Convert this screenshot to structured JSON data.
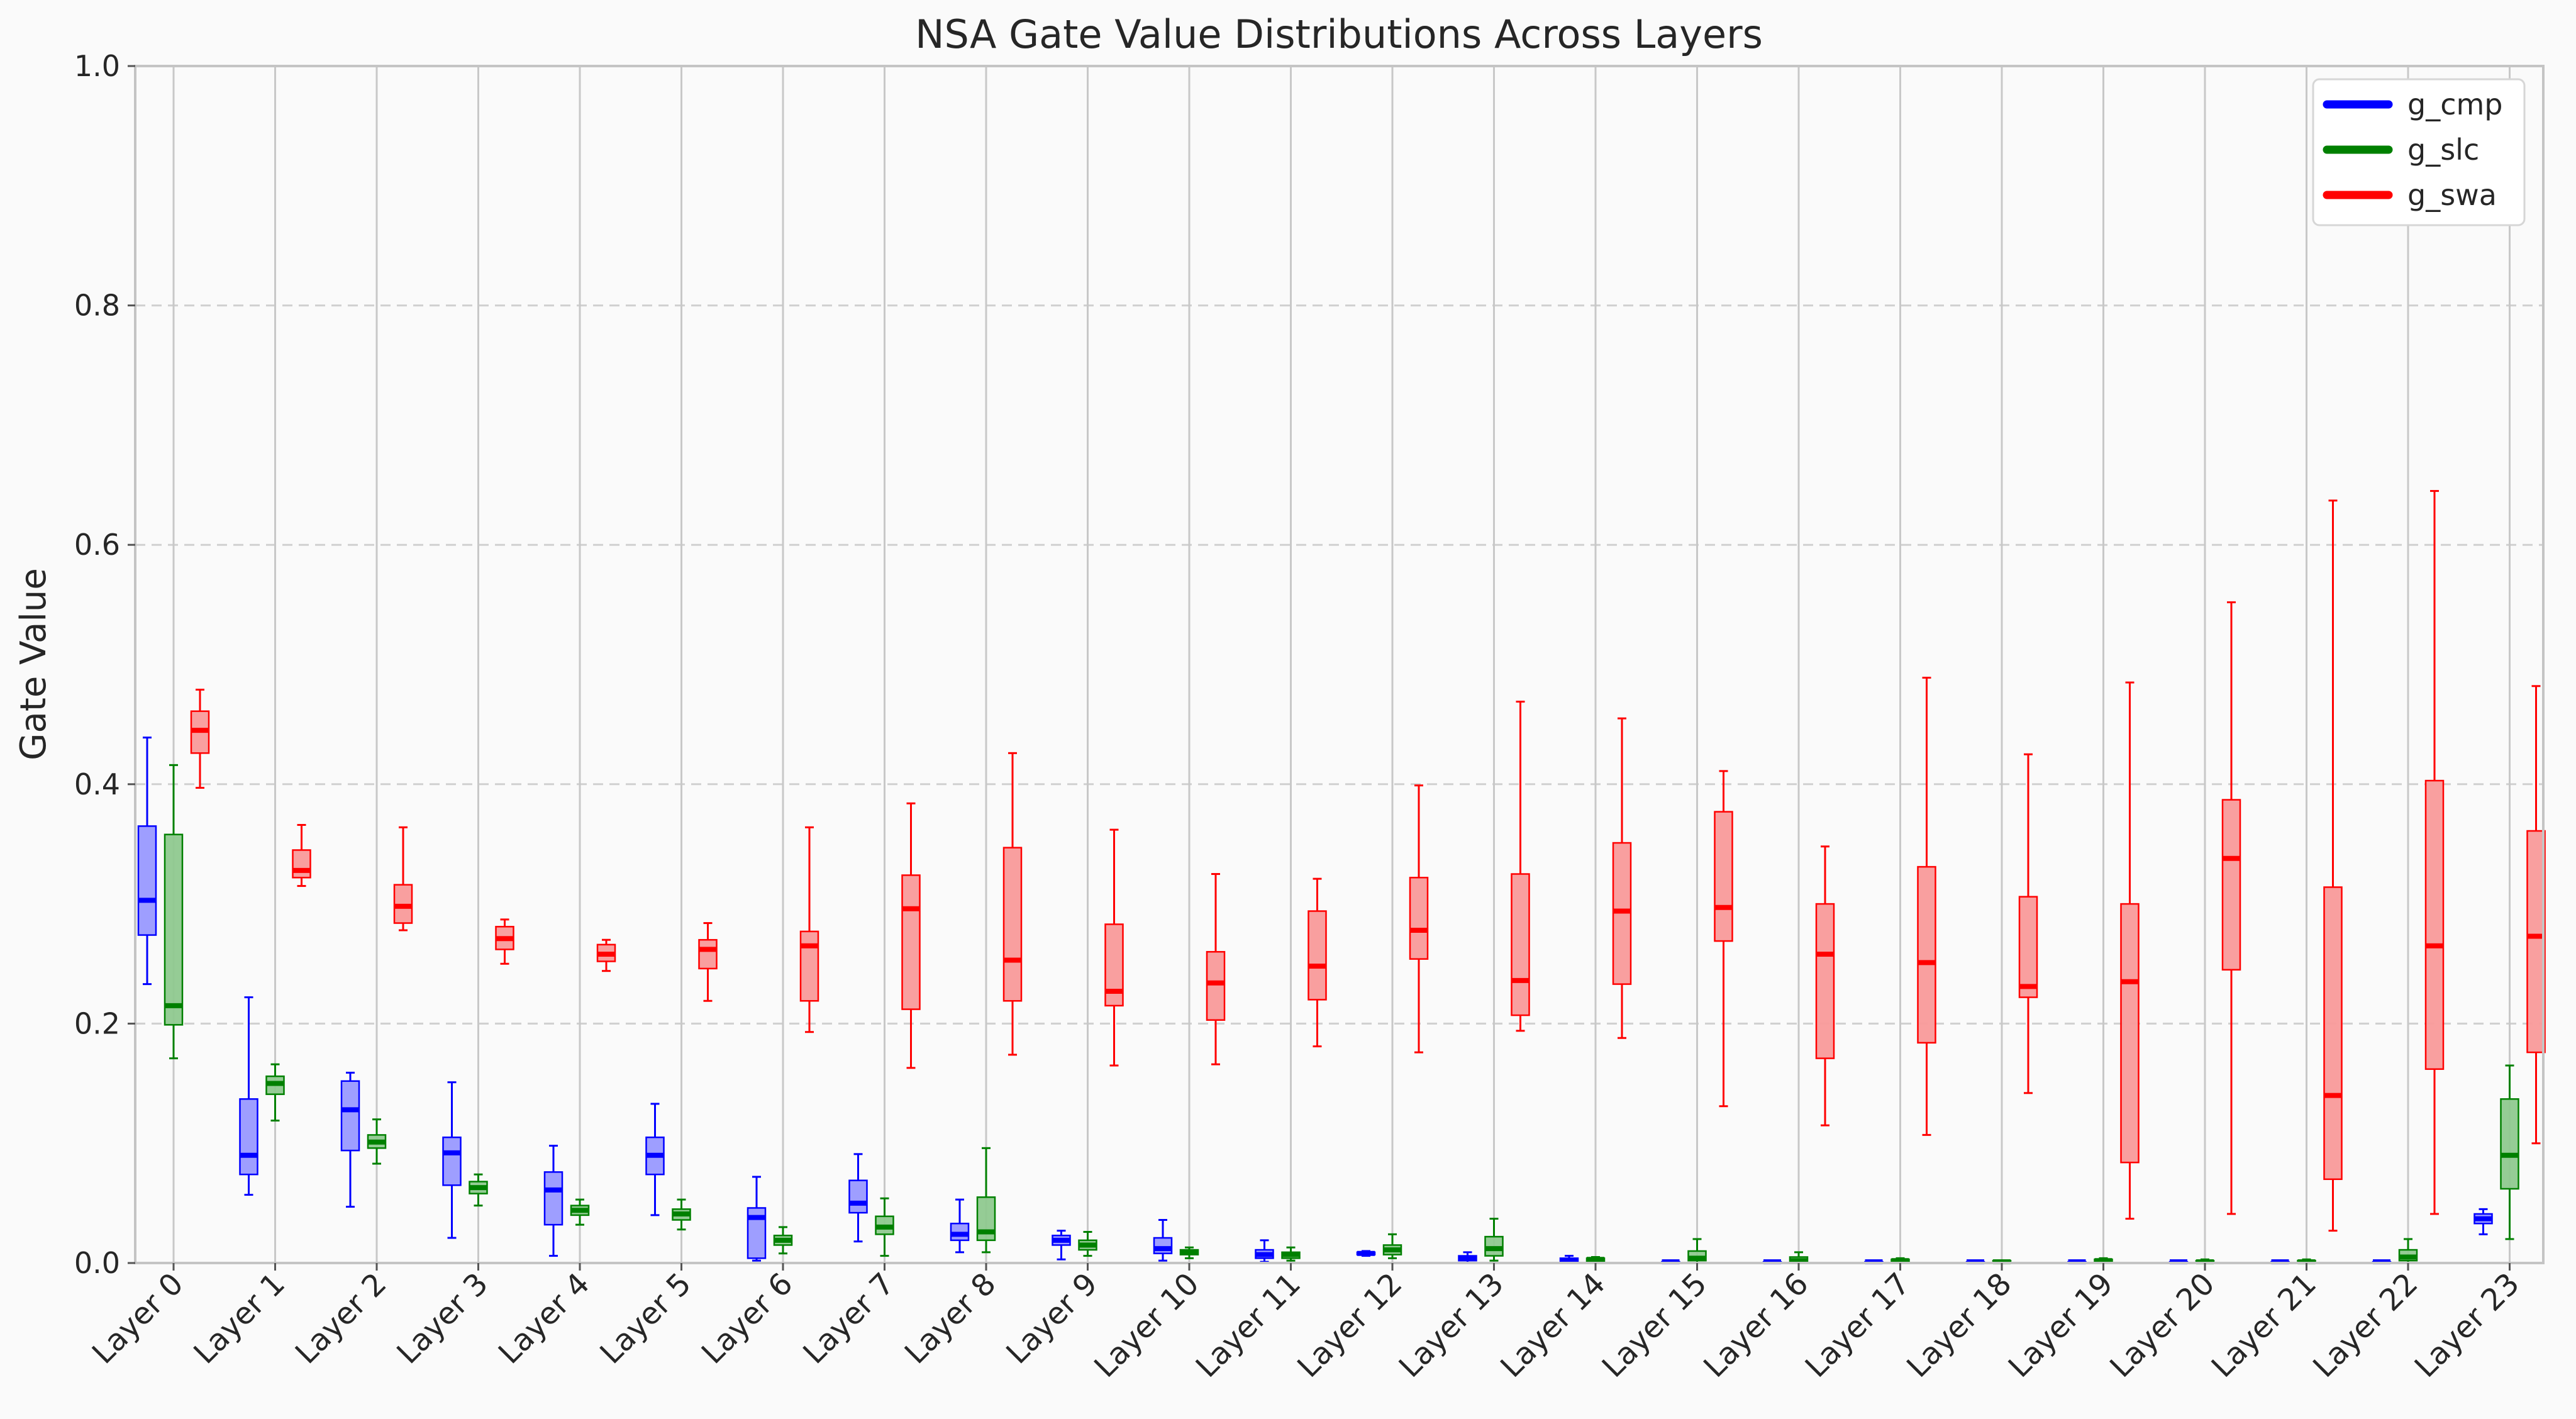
{
  "chart_data": {
    "type": "boxplot",
    "title": "NSA Gate Value Distributions Across Layers",
    "xlabel": "",
    "ylabel": "Gate Value",
    "ylim": [
      0,
      1.0
    ],
    "yticks": [
      "0.0",
      "0.2",
      "0.4",
      "0.6",
      "0.8",
      "1.0"
    ],
    "grid": "y-dashed, x-solid",
    "legend_position": "top-right",
    "categories": [
      "Layer 0",
      "Layer 1",
      "Layer 2",
      "Layer 3",
      "Layer 4",
      "Layer 5",
      "Layer 6",
      "Layer 7",
      "Layer 8",
      "Layer 9",
      "Layer 10",
      "Layer 11",
      "Layer 12",
      "Layer 13",
      "Layer 14",
      "Layer 15",
      "Layer 16",
      "Layer 17",
      "Layer 18",
      "Layer 19",
      "Layer 20",
      "Layer 21",
      "Layer 22",
      "Layer 23"
    ],
    "series": [
      {
        "name": "g_cmp",
        "color": "#0000ff",
        "fill": "#9999ff",
        "boxes": [
          {
            "min": 0.233,
            "q1": 0.274,
            "median": 0.303,
            "q3": 0.365,
            "max": 0.439
          },
          {
            "min": 0.057,
            "q1": 0.074,
            "median": 0.09,
            "q3": 0.137,
            "max": 0.222
          },
          {
            "min": 0.047,
            "q1": 0.094,
            "median": 0.128,
            "q3": 0.152,
            "max": 0.159
          },
          {
            "min": 0.021,
            "q1": 0.065,
            "median": 0.092,
            "q3": 0.105,
            "max": 0.151
          },
          {
            "min": 0.006,
            "q1": 0.032,
            "median": 0.061,
            "q3": 0.076,
            "max": 0.098
          },
          {
            "min": 0.04,
            "q1": 0.074,
            "median": 0.09,
            "q3": 0.105,
            "max": 0.133
          },
          {
            "min": 0.002,
            "q1": 0.004,
            "median": 0.038,
            "q3": 0.046,
            "max": 0.072
          },
          {
            "min": 0.018,
            "q1": 0.042,
            "median": 0.05,
            "q3": 0.069,
            "max": 0.091
          },
          {
            "min": 0.009,
            "q1": 0.019,
            "median": 0.024,
            "q3": 0.033,
            "max": 0.053
          },
          {
            "min": 0.003,
            "q1": 0.015,
            "median": 0.019,
            "q3": 0.023,
            "max": 0.027
          },
          {
            "min": 0.002,
            "q1": 0.008,
            "median": 0.012,
            "q3": 0.021,
            "max": 0.036
          },
          {
            "min": 0.001,
            "q1": 0.004,
            "median": 0.007,
            "q3": 0.011,
            "max": 0.019
          },
          {
            "min": 0.006,
            "q1": 0.007,
            "median": 0.008,
            "q3": 0.009,
            "max": 0.01
          },
          {
            "min": 0.0,
            "q1": 0.002,
            "median": 0.004,
            "q3": 0.006,
            "max": 0.009
          },
          {
            "min": 0.0,
            "q1": 0.001,
            "median": 0.002,
            "q3": 0.004,
            "max": 0.006
          },
          {
            "min": 0.0,
            "q1": 0.0,
            "median": 0.001,
            "q3": 0.001,
            "max": 0.002
          },
          {
            "min": 0.0,
            "q1": 0.0,
            "median": 0.001,
            "q3": 0.001,
            "max": 0.002
          },
          {
            "min": 0.0,
            "q1": 0.0,
            "median": 0.001,
            "q3": 0.001,
            "max": 0.002
          },
          {
            "min": 0.0,
            "q1": 0.0,
            "median": 0.001,
            "q3": 0.001,
            "max": 0.002
          },
          {
            "min": 0.0,
            "q1": 0.0,
            "median": 0.001,
            "q3": 0.001,
            "max": 0.002
          },
          {
            "min": 0.0,
            "q1": 0.0,
            "median": 0.001,
            "q3": 0.001,
            "max": 0.002
          },
          {
            "min": 0.0,
            "q1": 0.0,
            "median": 0.001,
            "q3": 0.001,
            "max": 0.002
          },
          {
            "min": 0.0,
            "q1": 0.0,
            "median": 0.001,
            "q3": 0.001,
            "max": 0.002
          },
          {
            "min": 0.024,
            "q1": 0.033,
            "median": 0.037,
            "q3": 0.041,
            "max": 0.045
          }
        ]
      },
      {
        "name": "g_slc",
        "color": "#008000",
        "fill": "#8fc98f",
        "boxes": [
          {
            "min": 0.171,
            "q1": 0.199,
            "median": 0.215,
            "q3": 0.358,
            "max": 0.416
          },
          {
            "min": 0.119,
            "q1": 0.141,
            "median": 0.15,
            "q3": 0.156,
            "max": 0.166
          },
          {
            "min": 0.083,
            "q1": 0.096,
            "median": 0.101,
            "q3": 0.107,
            "max": 0.12
          },
          {
            "min": 0.048,
            "q1": 0.058,
            "median": 0.063,
            "q3": 0.068,
            "max": 0.074
          },
          {
            "min": 0.032,
            "q1": 0.04,
            "median": 0.044,
            "q3": 0.048,
            "max": 0.053
          },
          {
            "min": 0.028,
            "q1": 0.036,
            "median": 0.041,
            "q3": 0.045,
            "max": 0.053
          },
          {
            "min": 0.008,
            "q1": 0.015,
            "median": 0.019,
            "q3": 0.023,
            "max": 0.03
          },
          {
            "min": 0.006,
            "q1": 0.024,
            "median": 0.03,
            "q3": 0.039,
            "max": 0.054
          },
          {
            "min": 0.009,
            "q1": 0.019,
            "median": 0.026,
            "q3": 0.055,
            "max": 0.096
          },
          {
            "min": 0.006,
            "q1": 0.011,
            "median": 0.015,
            "q3": 0.019,
            "max": 0.026
          },
          {
            "min": 0.004,
            "q1": 0.007,
            "median": 0.009,
            "q3": 0.011,
            "max": 0.013
          },
          {
            "min": 0.002,
            "q1": 0.004,
            "median": 0.007,
            "q3": 0.009,
            "max": 0.013
          },
          {
            "min": 0.004,
            "q1": 0.007,
            "median": 0.011,
            "q3": 0.015,
            "max": 0.024
          },
          {
            "min": 0.002,
            "q1": 0.006,
            "median": 0.012,
            "q3": 0.022,
            "max": 0.037
          },
          {
            "min": 0.0,
            "q1": 0.001,
            "median": 0.003,
            "q3": 0.004,
            "max": 0.005
          },
          {
            "min": 0.0,
            "q1": 0.002,
            "median": 0.004,
            "q3": 0.01,
            "max": 0.02
          },
          {
            "min": 0.0,
            "q1": 0.001,
            "median": 0.002,
            "q3": 0.005,
            "max": 0.009
          },
          {
            "min": 0.0,
            "q1": 0.001,
            "median": 0.002,
            "q3": 0.003,
            "max": 0.004
          },
          {
            "min": 0.0,
            "q1": 0.0,
            "median": 0.001,
            "q3": 0.002,
            "max": 0.002
          },
          {
            "min": 0.0,
            "q1": 0.001,
            "median": 0.002,
            "q3": 0.003,
            "max": 0.004
          },
          {
            "min": 0.0,
            "q1": 0.001,
            "median": 0.001,
            "q3": 0.002,
            "max": 0.003
          },
          {
            "min": 0.0,
            "q1": 0.001,
            "median": 0.001,
            "q3": 0.002,
            "max": 0.003
          },
          {
            "min": 0.0,
            "q1": 0.002,
            "median": 0.005,
            "q3": 0.011,
            "max": 0.02
          },
          {
            "min": 0.02,
            "q1": 0.062,
            "median": 0.09,
            "q3": 0.137,
            "max": 0.165
          }
        ]
      },
      {
        "name": "g_swa",
        "color": "#ff0000",
        "fill": "#f99a9a",
        "boxes": [
          {
            "min": 0.397,
            "q1": 0.426,
            "median": 0.445,
            "q3": 0.461,
            "max": 0.479
          },
          {
            "min": 0.315,
            "q1": 0.322,
            "median": 0.328,
            "q3": 0.345,
            "max": 0.366
          },
          {
            "min": 0.278,
            "q1": 0.284,
            "median": 0.298,
            "q3": 0.316,
            "max": 0.364
          },
          {
            "min": 0.25,
            "q1": 0.262,
            "median": 0.271,
            "q3": 0.281,
            "max": 0.287
          },
          {
            "min": 0.244,
            "q1": 0.252,
            "median": 0.258,
            "q3": 0.266,
            "max": 0.27
          },
          {
            "min": 0.219,
            "q1": 0.246,
            "median": 0.262,
            "q3": 0.27,
            "max": 0.284
          },
          {
            "min": 0.193,
            "q1": 0.219,
            "median": 0.265,
            "q3": 0.277,
            "max": 0.364
          },
          {
            "min": 0.163,
            "q1": 0.212,
            "median": 0.296,
            "q3": 0.324,
            "max": 0.384
          },
          {
            "min": 0.174,
            "q1": 0.219,
            "median": 0.253,
            "q3": 0.347,
            "max": 0.426
          },
          {
            "min": 0.165,
            "q1": 0.215,
            "median": 0.227,
            "q3": 0.283,
            "max": 0.362
          },
          {
            "min": 0.166,
            "q1": 0.203,
            "median": 0.234,
            "q3": 0.26,
            "max": 0.325
          },
          {
            "min": 0.181,
            "q1": 0.22,
            "median": 0.248,
            "q3": 0.294,
            "max": 0.321
          },
          {
            "min": 0.176,
            "q1": 0.254,
            "median": 0.278,
            "q3": 0.322,
            "max": 0.399
          },
          {
            "min": 0.194,
            "q1": 0.207,
            "median": 0.236,
            "q3": 0.325,
            "max": 0.469
          },
          {
            "min": 0.188,
            "q1": 0.233,
            "median": 0.294,
            "q3": 0.351,
            "max": 0.455
          },
          {
            "min": 0.131,
            "q1": 0.269,
            "median": 0.297,
            "q3": 0.377,
            "max": 0.411
          },
          {
            "min": 0.115,
            "q1": 0.171,
            "median": 0.258,
            "q3": 0.3,
            "max": 0.348
          },
          {
            "min": 0.107,
            "q1": 0.184,
            "median": 0.251,
            "q3": 0.331,
            "max": 0.489
          },
          {
            "min": 0.142,
            "q1": 0.222,
            "median": 0.231,
            "q3": 0.306,
            "max": 0.425
          },
          {
            "min": 0.037,
            "q1": 0.084,
            "median": 0.235,
            "q3": 0.3,
            "max": 0.485
          },
          {
            "min": 0.041,
            "q1": 0.245,
            "median": 0.338,
            "q3": 0.387,
            "max": 0.552
          },
          {
            "min": 0.027,
            "q1": 0.07,
            "median": 0.14,
            "q3": 0.314,
            "max": 0.637
          },
          {
            "min": 0.041,
            "q1": 0.162,
            "median": 0.265,
            "q3": 0.403,
            "max": 0.645
          },
          {
            "min": 0.1,
            "q1": 0.176,
            "median": 0.273,
            "q3": 0.361,
            "max": 0.482
          }
        ]
      }
    ]
  }
}
